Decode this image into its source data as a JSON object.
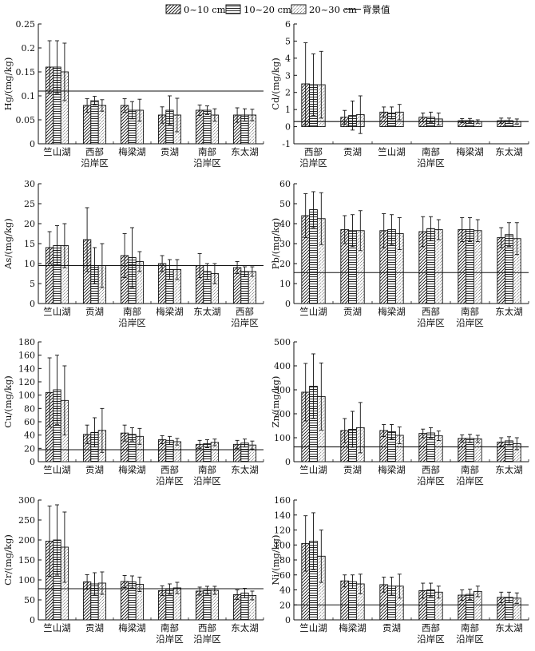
{
  "legend": {
    "items": [
      {
        "label": "0~10 cm",
        "pattern": "diag"
      },
      {
        "label": "10~20 cm",
        "pattern": "horiz"
      },
      {
        "label": "20~30 cm",
        "pattern": "dots"
      }
    ],
    "background_label": "背景值"
  },
  "chart_data": [
    {
      "type": "bar",
      "ylabel": "Hg/(mg/kg)",
      "ylim": [
        0,
        0.25
      ],
      "yticks": [
        0,
        0.05,
        0.1,
        0.15,
        0.2,
        0.25
      ],
      "categories": [
        "竺山湖",
        "西部\n沿岸区",
        "梅梁湖",
        "贡湖",
        "南部\n沿岸区",
        "东太湖"
      ],
      "series": [
        {
          "name": "0~10 cm",
          "values": [
            0.16,
            0.08,
            0.08,
            0.06,
            0.07,
            0.06
          ],
          "errors": [
            0.055,
            0.014,
            0.014,
            0.017,
            0.011,
            0.015
          ]
        },
        {
          "name": "10~20 cm",
          "values": [
            0.16,
            0.09,
            0.07,
            0.07,
            0.07,
            0.06
          ],
          "errors": [
            0.055,
            0.009,
            0.018,
            0.03,
            0.009,
            0.013
          ]
        },
        {
          "name": "20~30 cm",
          "values": [
            0.15,
            0.08,
            0.07,
            0.06,
            0.06,
            0.06
          ],
          "errors": [
            0.06,
            0.012,
            0.023,
            0.035,
            0.013,
            0.012
          ]
        }
      ],
      "background_value": 0.11
    },
    {
      "type": "bar",
      "ylabel": "Cd/(mg/kg)",
      "ylim": [
        -1,
        6
      ],
      "yticks": [
        -1,
        0,
        1,
        2,
        3,
        4,
        5,
        6
      ],
      "categories": [
        "西部\n沿岸区",
        "贡湖",
        "竺山湖",
        "南部\n沿岸区",
        "梅梁湖",
        "东太湖"
      ],
      "series": [
        {
          "name": "0~10 cm",
          "values": [
            2.5,
            0.55,
            0.85,
            0.55,
            0.35,
            0.35
          ],
          "errors": [
            2.4,
            0.4,
            0.3,
            0.25,
            0.12,
            0.15
          ]
        },
        {
          "name": "10~20 cm",
          "values": [
            2.45,
            0.65,
            0.8,
            0.55,
            0.35,
            0.35
          ],
          "errors": [
            1.8,
            0.85,
            0.35,
            0.3,
            0.13,
            0.15
          ]
        },
        {
          "name": "20~30 cm",
          "values": [
            2.45,
            0.7,
            0.85,
            0.45,
            0.3,
            0.3
          ],
          "errors": [
            1.95,
            1.1,
            0.45,
            0.35,
            0.1,
            0.15
          ]
        }
      ],
      "background_value": 0.3
    },
    {
      "type": "bar",
      "ylabel": "As/(mg/kg)",
      "ylim": [
        0,
        30
      ],
      "yticks": [
        0,
        5,
        10,
        15,
        20,
        25,
        30
      ],
      "categories": [
        "竺山湖",
        "贡湖",
        "南部\n沿岸区",
        "梅梁湖",
        "东太湖",
        "西部\n沿岸区"
      ],
      "series": [
        {
          "name": "0~10 cm",
          "values": [
            14,
            16,
            12,
            10,
            9.5,
            9
          ],
          "errors": [
            4,
            8,
            5.5,
            2,
            3,
            1.5
          ]
        },
        {
          "name": "10~20 cm",
          "values": [
            14.5,
            9.5,
            11.5,
            8.5,
            8,
            8
          ],
          "errors": [
            5,
            4.5,
            7.5,
            2.5,
            2,
            1.2
          ]
        },
        {
          "name": "20~30 cm",
          "values": [
            14.5,
            9.5,
            10.5,
            8.5,
            7.5,
            8
          ],
          "errors": [
            5.5,
            5.5,
            2.5,
            2.5,
            2.5,
            1.2
          ]
        }
      ],
      "background_value": 9.5
    },
    {
      "type": "bar",
      "ylabel": "Pb/(mg/kg)",
      "ylim": [
        0,
        60
      ],
      "yticks": [
        0,
        10,
        20,
        30,
        40,
        50,
        60
      ],
      "categories": [
        "竺山湖",
        "贡湖",
        "梅梁湖",
        "西部\n沿岸区",
        "南部\n沿岸区",
        "东太湖"
      ],
      "series": [
        {
          "name": "0~10 cm",
          "values": [
            44,
            37,
            36.5,
            36,
            37,
            33
          ],
          "errors": [
            11,
            7,
            8.5,
            7.5,
            6,
            5
          ]
        },
        {
          "name": "10~20 cm",
          "values": [
            47,
            36.5,
            37,
            37.5,
            37,
            34.5
          ],
          "errors": [
            9,
            8,
            7.5,
            6,
            6,
            6
          ]
        },
        {
          "name": "20~30 cm",
          "values": [
            42.5,
            36.5,
            35,
            37,
            36.5,
            32.5
          ],
          "errors": [
            13,
            10,
            8,
            5,
            5.5,
            8
          ]
        }
      ],
      "background_value": 15.5
    },
    {
      "type": "bar",
      "ylabel": "Cu/(mg/kg)",
      "ylim": [
        0,
        180
      ],
      "yticks": [
        0,
        20,
        40,
        60,
        80,
        100,
        120,
        140,
        160,
        180
      ],
      "categories": [
        "竺山湖",
        "贡湖",
        "梅梁湖",
        "西部\n沿岸区",
        "南部\n沿岸区",
        "东太湖"
      ],
      "series": [
        {
          "name": "0~10 cm",
          "values": [
            104,
            41,
            43,
            33,
            26,
            26
          ],
          "errors": [
            52,
            14,
            12,
            6,
            6,
            6
          ]
        },
        {
          "name": "10~20 cm",
          "values": [
            108,
            44,
            41,
            32,
            27,
            28
          ],
          "errors": [
            52,
            22,
            10,
            6,
            6,
            6
          ]
        },
        {
          "name": "20~30 cm",
          "values": [
            92,
            47,
            38,
            30,
            29,
            25
          ],
          "errors": [
            52,
            33,
            12,
            5,
            5,
            6
          ]
        }
      ],
      "background_value": 18
    },
    {
      "type": "bar",
      "ylabel": "Zn/(mg/kg)",
      "ylim": [
        0,
        500
      ],
      "yticks": [
        0,
        100,
        200,
        300,
        400,
        500
      ],
      "categories": [
        "竺山湖",
        "贡湖",
        "梅梁湖",
        "西部\n沿岸区",
        "南部\n沿岸区",
        "东太湖"
      ],
      "series": [
        {
          "name": "0~10 cm",
          "values": [
            290,
            130,
            130,
            118,
            97,
            82
          ],
          "errors": [
            120,
            50,
            25,
            18,
            15,
            18
          ]
        },
        {
          "name": "10~20 cm",
          "values": [
            315,
            135,
            125,
            120,
            97,
            87
          ],
          "errors": [
            135,
            75,
            30,
            22,
            17,
            17
          ]
        },
        {
          "name": "20~30 cm",
          "values": [
            272,
            142,
            110,
            108,
            95,
            75
          ],
          "errors": [
            140,
            105,
            35,
            20,
            15,
            25
          ]
        }
      ],
      "background_value": 62
    },
    {
      "type": "bar",
      "ylabel": "Cr/(mg/kg)",
      "ylim": [
        0,
        300
      ],
      "yticks": [
        0,
        50,
        100,
        150,
        200,
        250,
        300
      ],
      "categories": [
        "竺山湖",
        "贡湖",
        "梅梁湖",
        "南部\n沿岸区",
        "西部\n沿岸区",
        "东太湖"
      ],
      "series": [
        {
          "name": "0~10 cm",
          "values": [
            197,
            95,
            96,
            73,
            72,
            63
          ],
          "errors": [
            88,
            18,
            15,
            12,
            10,
            12
          ]
        },
        {
          "name": "10~20 cm",
          "values": [
            200,
            90,
            95,
            77,
            74,
            67
          ],
          "errors": [
            88,
            28,
            15,
            13,
            10,
            12
          ]
        },
        {
          "name": "20~30 cm",
          "values": [
            182,
            92,
            89,
            80,
            74,
            61
          ],
          "errors": [
            88,
            28,
            18,
            14,
            10,
            11
          ]
        }
      ],
      "background_value": 78
    },
    {
      "type": "bar",
      "ylabel": "Ni/(mg/kg)",
      "ylim": [
        0,
        160
      ],
      "yticks": [
        0,
        20,
        40,
        60,
        80,
        100,
        120,
        140,
        160
      ],
      "categories": [
        "竺山湖",
        "梅梁湖",
        "贡湖",
        "西部\n沿岸区",
        "南部\n沿岸区",
        "东太湖"
      ],
      "series": [
        {
          "name": "0~10 cm",
          "values": [
            102,
            52,
            47,
            39,
            33,
            30
          ],
          "errors": [
            37,
            8,
            10,
            10,
            7,
            7
          ]
        },
        {
          "name": "10~20 cm",
          "values": [
            105,
            51,
            45,
            40,
            34,
            30
          ],
          "errors": [
            38,
            9,
            12,
            9,
            7,
            7
          ]
        },
        {
          "name": "20~30 cm",
          "values": [
            85,
            48,
            45,
            37,
            38,
            29
          ],
          "errors": [
            35,
            13,
            16,
            8,
            7,
            7
          ]
        }
      ],
      "background_value": 20
    }
  ]
}
